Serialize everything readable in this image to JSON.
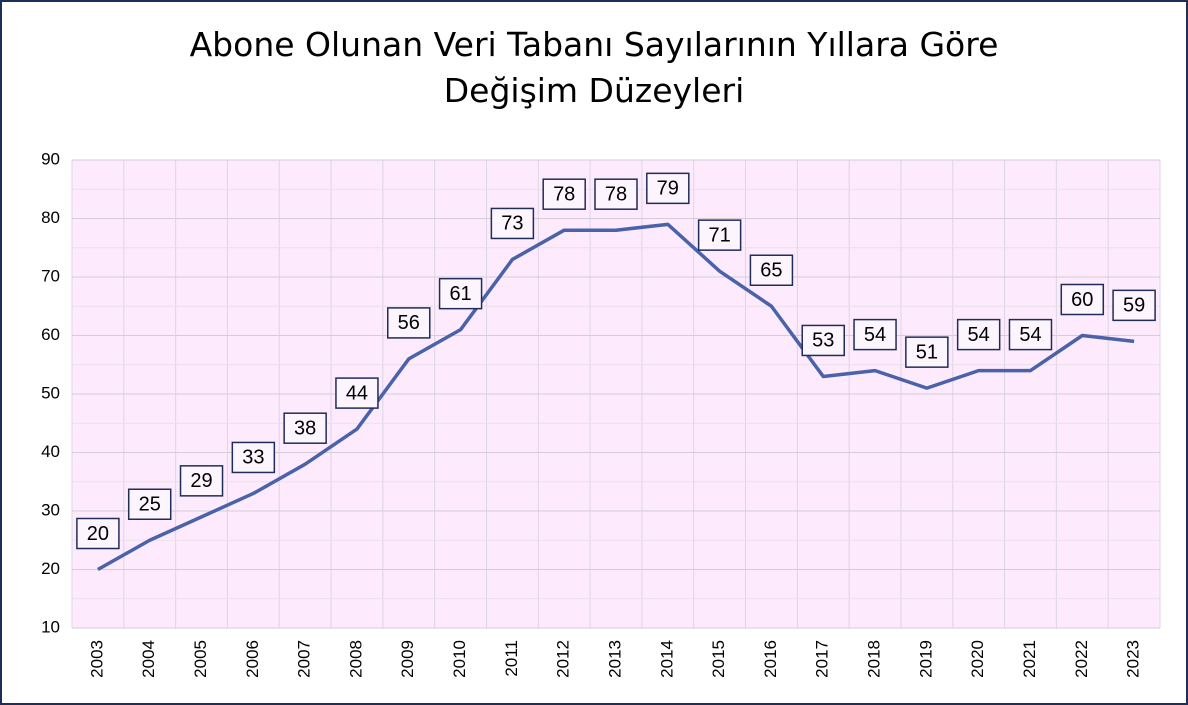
{
  "chart_data": {
    "type": "line",
    "title": "Abone Olunan Veri Tabanı Sayılarının Yıllara Göre Değişim Düzeyleri",
    "categories": [
      "2003",
      "2004",
      "2005",
      "2006",
      "2007",
      "2008",
      "2009",
      "2010",
      "2011",
      "2012",
      "2013",
      "2014",
      "2015",
      "2016",
      "2017",
      "2018",
      "2019",
      "2020",
      "2021",
      "2022",
      "2023"
    ],
    "values": [
      20,
      25,
      29,
      33,
      38,
      44,
      56,
      61,
      73,
      78,
      78,
      79,
      71,
      65,
      53,
      54,
      51,
      54,
      54,
      60,
      59
    ],
    "color": "#4a62aa",
    "ylim": [
      10,
      90
    ],
    "yticks": [
      10,
      20,
      30,
      40,
      50,
      60,
      70,
      80,
      90
    ],
    "grid": true
  }
}
